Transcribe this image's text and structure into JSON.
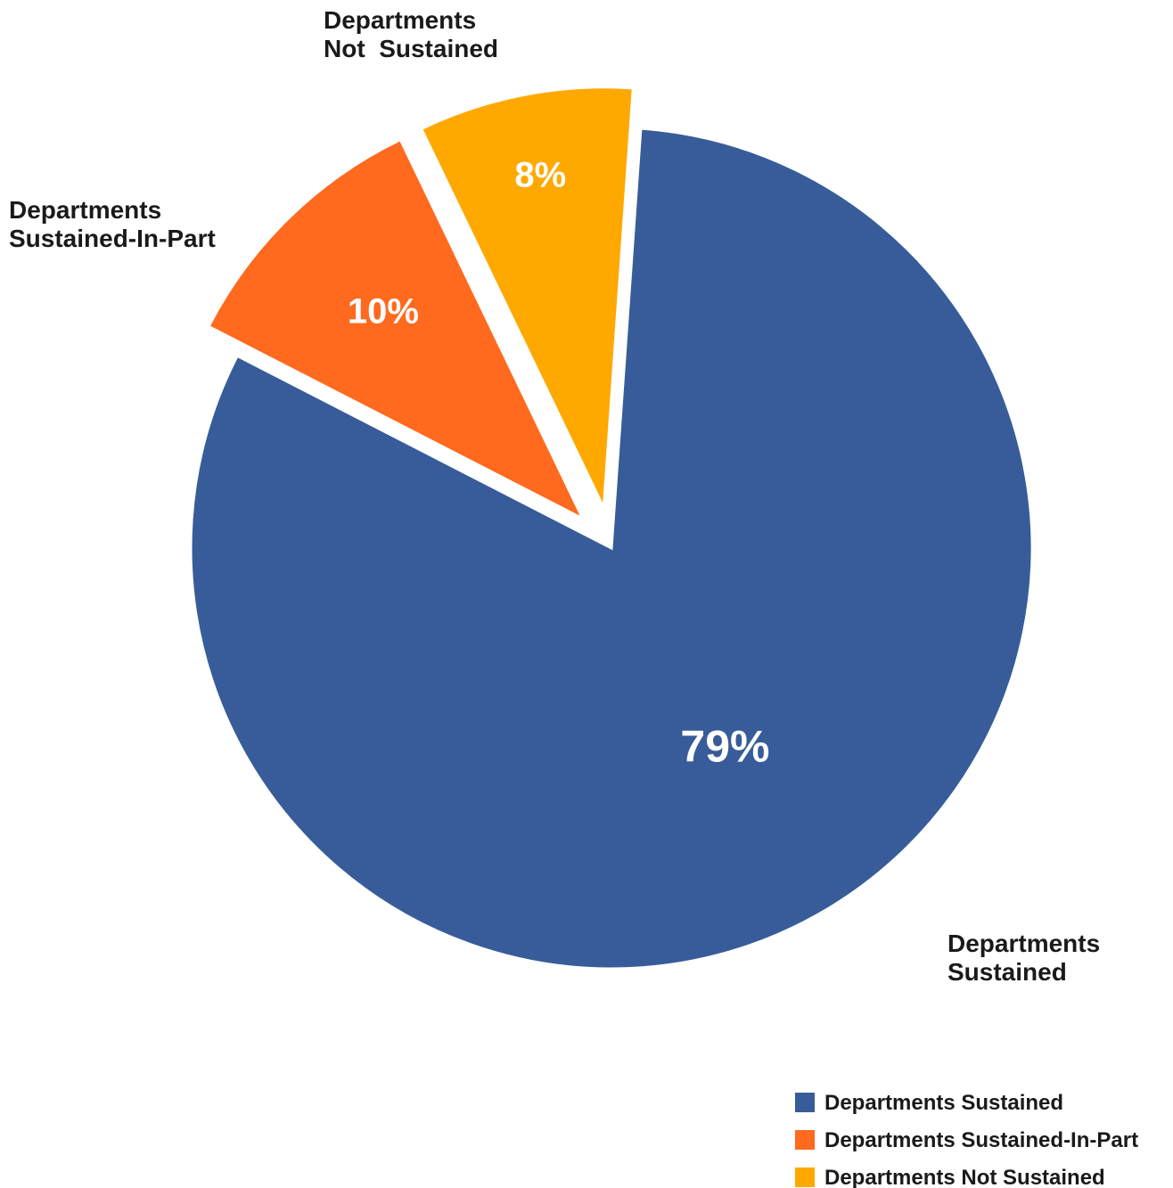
{
  "chart_data": {
    "type": "pie",
    "title": "",
    "legend_position": "bottom-right",
    "slices": [
      {
        "key": "sustained",
        "name": "Departments Sustained",
        "value": 79,
        "value_label": "79%",
        "callout": [
          "Departments",
          "Sustained"
        ],
        "color": "#375C99"
      },
      {
        "key": "sustained_in_part",
        "name": "Departments Sustained-In-Part",
        "value": 10,
        "value_label": "10%",
        "callout": [
          "Departments",
          "Sustained-In-Part"
        ],
        "color": "#FF6A1F"
      },
      {
        "key": "not_sustained",
        "name": "Departments Not Sustained",
        "value": 8,
        "value_label": "8%",
        "callout": [
          "Departments",
          "Not  Sustained"
        ],
        "color": "#FFA800"
      }
    ]
  }
}
